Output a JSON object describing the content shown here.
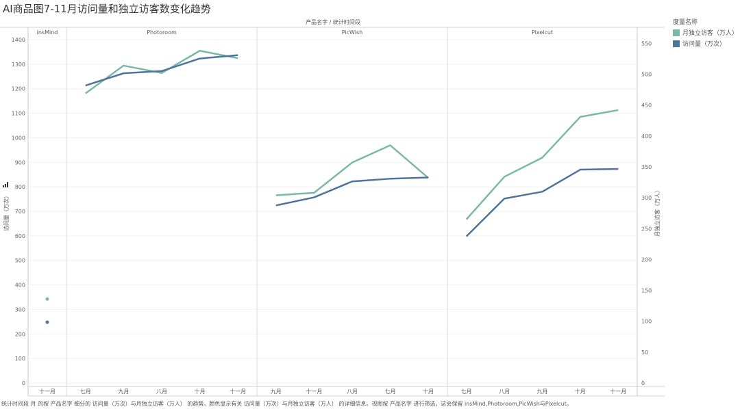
{
  "title": "AI商品图7-11月访问量和独立访客数变化趋势",
  "header": "产品名字  /  统计时间段",
  "footnote": "统计时间段 月 的按 产品名字 细分的 访问量（万次）与月独立访客（万人） 的趋势。颜色显示有关 访问量（万次）与月独立访客（万人） 的详细信息。视图按 产品名字 进行筛选，这会保留 insMind,Photoroom,PicWish与Pixelcut。",
  "legend": {
    "title": "度量名称",
    "items": [
      {
        "label": "月独立访客（万人）",
        "color": "#7ab8a8"
      },
      {
        "label": "访问量（万次）",
        "color": "#4f7399"
      }
    ]
  },
  "chart_data": {
    "type": "line",
    "left_axis": {
      "label": "访问量（万次）",
      "min": 0,
      "max": 1400,
      "ticks": [
        0,
        100,
        200,
        300,
        400,
        500,
        600,
        700,
        800,
        900,
        1000,
        1100,
        1200,
        1300,
        1400
      ]
    },
    "right_axis": {
      "label": "月独立访客（万人）",
      "min": 0,
      "max": 556,
      "ticks": [
        0,
        50,
        100,
        150,
        200,
        250,
        300,
        350,
        400,
        450,
        500,
        550
      ]
    },
    "panels": [
      {
        "name": "insMind",
        "x": [
          "十一月"
        ],
        "visits": [
          248
        ],
        "visitors": [
          136
        ]
      },
      {
        "name": "Photoroom",
        "x": [
          "七月",
          "九月",
          "八月",
          "十月",
          "十一月"
        ],
        "visits": [
          1213,
          1263,
          1272,
          1323,
          1337
        ],
        "visitors": [
          469,
          514,
          502,
          538,
          526
        ]
      },
      {
        "name": "PicWish",
        "x": [
          "九月",
          "十一月",
          "八月",
          "七月",
          "十月"
        ],
        "visits": [
          724,
          757,
          822,
          833,
          838
        ],
        "visitors": [
          304,
          308,
          357,
          385,
          332
        ]
      },
      {
        "name": "Pixelcut",
        "x": [
          "七月",
          "八月",
          "九月",
          "十月",
          "十一月"
        ],
        "visits": [
          598,
          752,
          780,
          870,
          873
        ],
        "visitors": [
          265,
          334,
          365,
          431,
          442
        ]
      }
    ]
  }
}
